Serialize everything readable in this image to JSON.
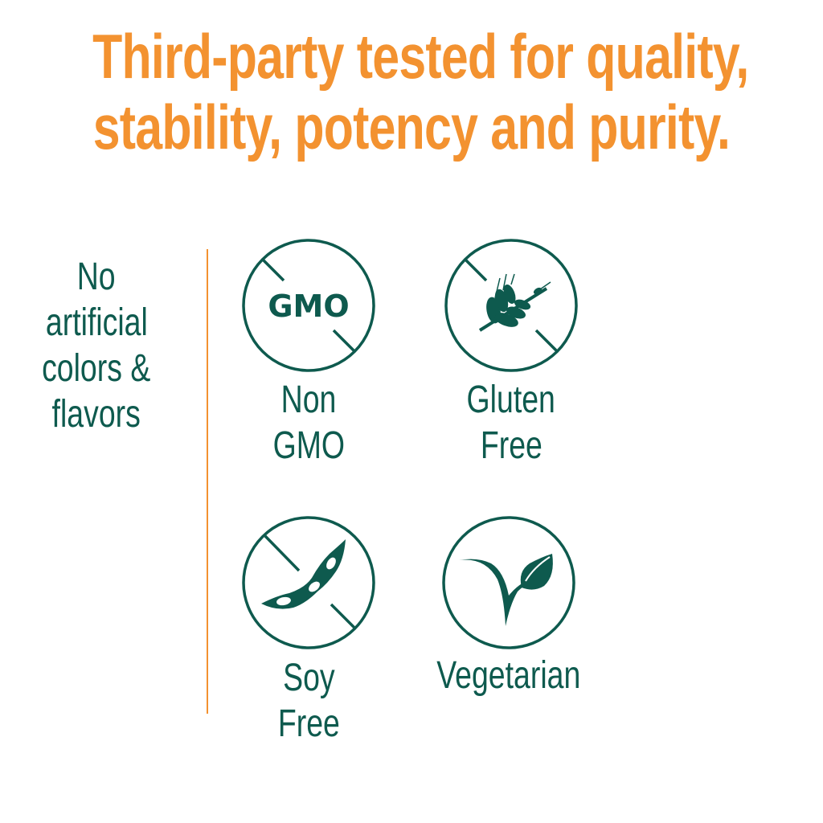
{
  "headline": {
    "line1": "Third-party tested for quality,",
    "line2": "stability, potency and purity."
  },
  "side_claim": {
    "lines": [
      "No",
      "artificial",
      "colors &",
      "flavors"
    ]
  },
  "badges": [
    {
      "icon": "no-gmo-icon",
      "icon_text": "GMO",
      "label_lines": [
        "Non",
        "GMO"
      ]
    },
    {
      "icon": "no-gluten-wheat-icon",
      "label_lines": [
        "Gluten",
        "Free"
      ]
    },
    {
      "icon": "no-soy-icon",
      "label_lines": [
        "Soy",
        "Free"
      ]
    },
    {
      "icon": "vegetarian-leaf-icon",
      "label_lines": [
        "Vegetarian"
      ]
    }
  ],
  "colors": {
    "accent": "#f39230",
    "primary": "#0e5a4e",
    "background": "#ffffff"
  }
}
